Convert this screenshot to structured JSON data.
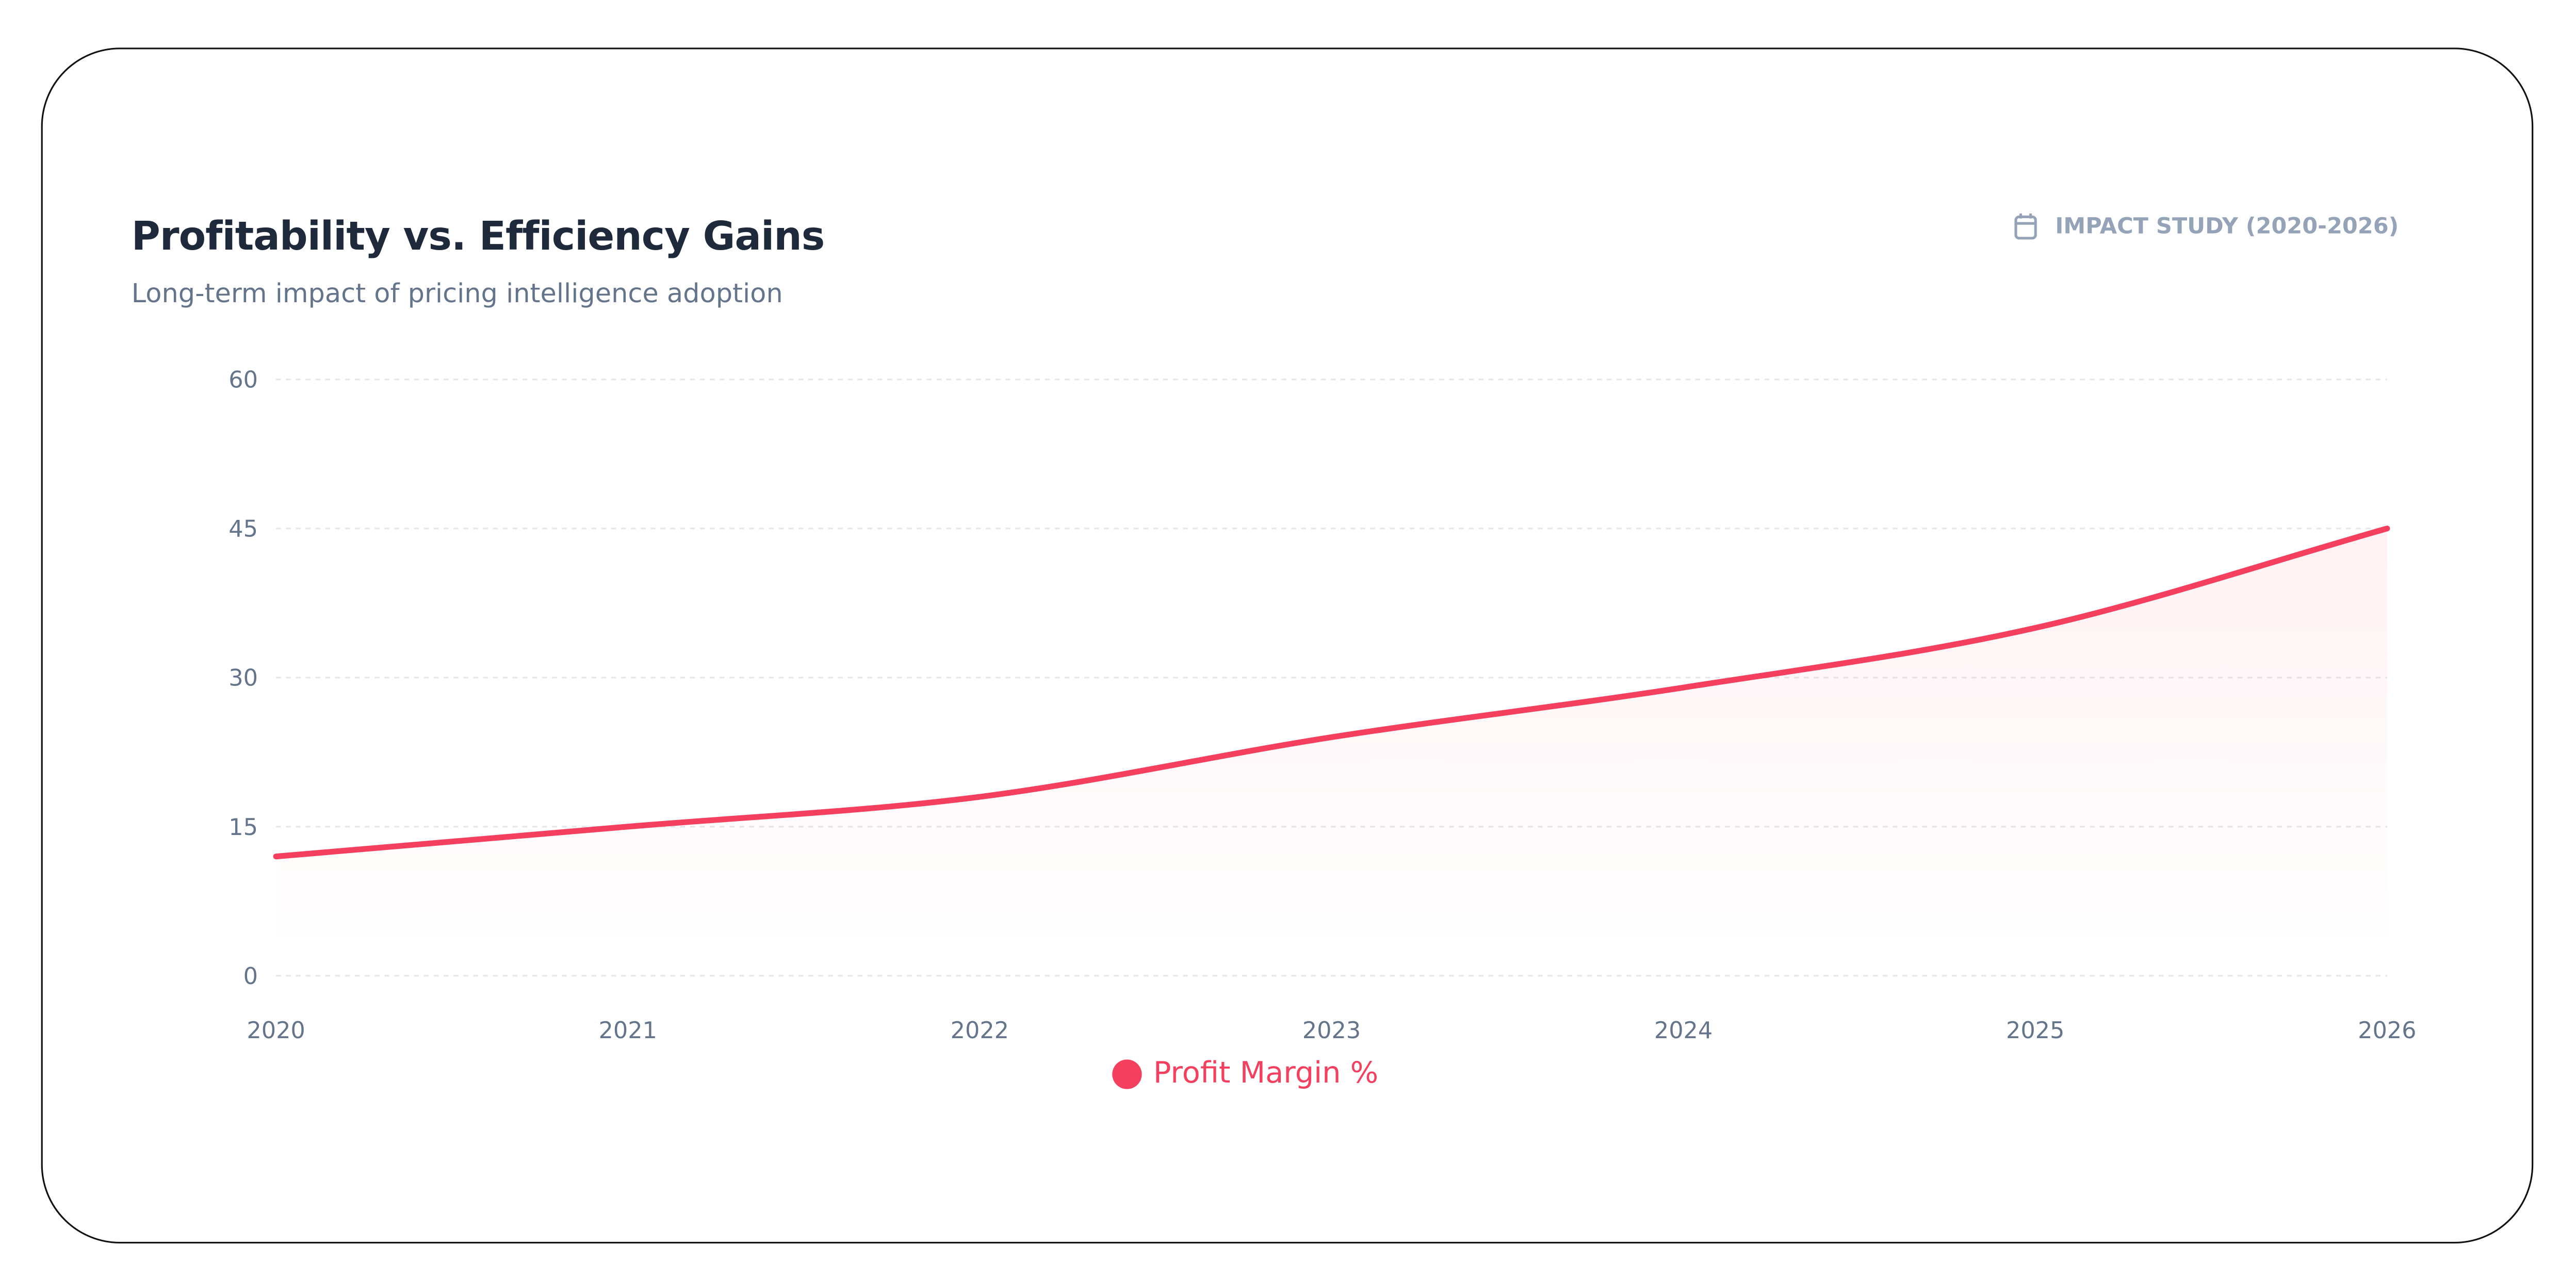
{
  "header": {
    "title": "Profitability vs. Efficiency Gains",
    "subtitle": "Long-term impact of pricing intelligence adoption",
    "badge_icon": "calendar-icon",
    "badge_label": "IMPACT STUDY (2020-2026)"
  },
  "chart_data": {
    "type": "area",
    "title": "Profitability vs. Efficiency Gains",
    "subtitle": "Long-term impact of pricing intelligence adoption",
    "categories": [
      "2020",
      "2021",
      "2022",
      "2023",
      "2024",
      "2025",
      "2026"
    ],
    "series": [
      {
        "name": "Profit Margin %",
        "values": [
          12,
          15,
          18,
          24,
          29,
          35,
          45
        ],
        "color": "#f43f5e"
      }
    ],
    "yticks": [
      "0",
      "15",
      "30",
      "45",
      "60"
    ],
    "ylim": [
      0,
      60
    ],
    "grid": true,
    "legend": "bottom-center",
    "xlabel": "",
    "ylabel": ""
  }
}
